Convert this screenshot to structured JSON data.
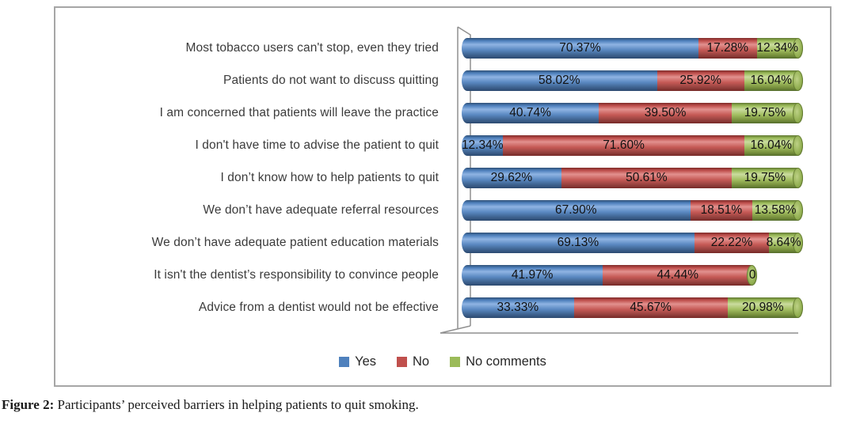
{
  "figure_caption": {
    "label": "Figure 2:",
    "text": " Participants’ perceived barriers in helping patients to quit smoking."
  },
  "legend": [
    {
      "name": "Yes",
      "color": "#4f81bd"
    },
    {
      "name": "No",
      "color": "#c0504d"
    },
    {
      "name": "No comments",
      "color": "#9bbb59"
    }
  ],
  "chart_data": {
    "type": "bar",
    "stacked": true,
    "orientation": "horizontal",
    "effect": "3d-cylinder",
    "title": "",
    "xlabel": "",
    "ylabel": "",
    "xlim": [
      0,
      100
    ],
    "grid": false,
    "legend_position": "bottom",
    "categories": [
      "Most tobacco users can't stop, even they tried",
      "Patients do not want to discuss quitting",
      "I am concerned that patients will leave the practice",
      "I don't have time to advise the patient to quit",
      "I don’t know how to help patients to quit",
      "We don’t have adequate referral resources",
      "We don’t have adequate patient education materials",
      "It isn't the dentist’s responsibility to convince people",
      "Advice from a dentist would not be effective"
    ],
    "series": [
      {
        "name": "Yes",
        "color": "#4f81bd",
        "values": [
          70.37,
          58.02,
          40.74,
          12.34,
          29.62,
          67.9,
          69.13,
          41.97,
          33.33
        ]
      },
      {
        "name": "No",
        "color": "#c0504d",
        "values": [
          17.28,
          25.92,
          39.5,
          71.6,
          50.61,
          18.51,
          22.22,
          44.44,
          45.67
        ]
      },
      {
        "name": "No comments",
        "color": "#9bbb59",
        "values": [
          12.34,
          16.04,
          19.75,
          16.04,
          19.75,
          13.58,
          8.64,
          0,
          20.98
        ]
      }
    ],
    "data_labels": [
      [
        "70.37%",
        "17.28%",
        "12.34%"
      ],
      [
        "58.02%",
        "25.92%",
        "16.04%"
      ],
      [
        "40.74%",
        "39.50%",
        "19.75%"
      ],
      [
        "12.34%",
        "71.60%",
        "16.04%"
      ],
      [
        "29.62%",
        "50.61%",
        "19.75%"
      ],
      [
        "67.90%",
        "18.51%",
        "13.58%"
      ],
      [
        "69.13%",
        "22.22%",
        "8.64%"
      ],
      [
        "41.97%",
        "44.44%",
        "0"
      ],
      [
        "33.33%",
        "45.67%",
        "20.98%"
      ]
    ]
  }
}
